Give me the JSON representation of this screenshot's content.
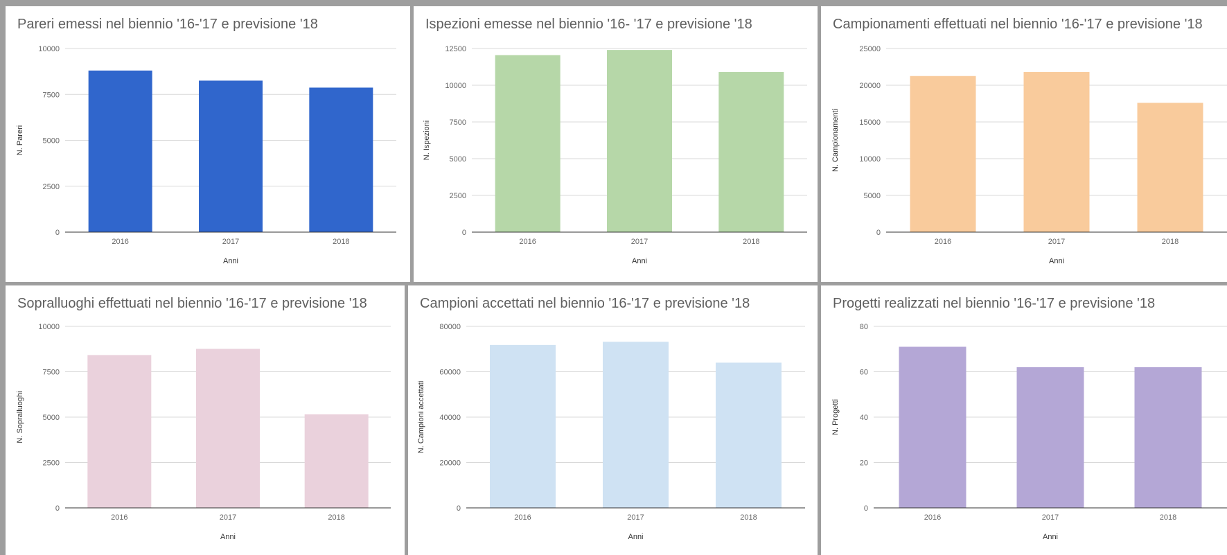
{
  "chart_data": [
    {
      "type": "bar",
      "title": "Pareri emessi nel biennio '16-'17 e previsione '18",
      "xlabel": "Anni",
      "ylabel": "N. Pareri",
      "categories": [
        "2016",
        "2017",
        "2018"
      ],
      "values": [
        8800,
        8250,
        7870
      ],
      "ylim": [
        0,
        10000
      ],
      "yticks": [
        0,
        2500,
        5000,
        7500,
        10000
      ],
      "color": "#3066cc",
      "grid": true,
      "legend": "none"
    },
    {
      "type": "bar",
      "title": "Ispezioni emesse nel biennio '16- '17 e previsione '18",
      "xlabel": "Anni",
      "ylabel": "N. Ispezioni",
      "categories": [
        "2016",
        "2017",
        "2018"
      ],
      "values": [
        12050,
        12400,
        10900
      ],
      "ylim": [
        0,
        12500
      ],
      "yticks": [
        0,
        2500,
        5000,
        7500,
        10000,
        12500
      ],
      "color": "#b6d7a8",
      "grid": true,
      "legend": "none"
    },
    {
      "type": "bar",
      "title": "Campionamenti effettuati nel biennio '16-'17 e previsione '18",
      "xlabel": "Anni",
      "ylabel": "N. Campionamenti",
      "categories": [
        "2016",
        "2017",
        "2018"
      ],
      "values": [
        21250,
        21800,
        17600
      ],
      "ylim": [
        0,
        25000
      ],
      "yticks": [
        0,
        5000,
        10000,
        15000,
        20000,
        25000
      ],
      "color": "#f9cb9c",
      "grid": true,
      "legend": "none"
    },
    {
      "type": "bar",
      "title": "Sopralluoghi effettuati nel biennio '16-'17 e previsione '18",
      "xlabel": "Anni",
      "ylabel": "N. Sopralluoghi",
      "categories": [
        "2016",
        "2017",
        "2018"
      ],
      "values": [
        8420,
        8760,
        5150
      ],
      "ylim": [
        0,
        10000
      ],
      "yticks": [
        0,
        2500,
        5000,
        7500,
        10000
      ],
      "color": "#ead1dc",
      "grid": true,
      "legend": "none"
    },
    {
      "type": "bar",
      "title": "Campioni accettati nel biennio '16-'17 e previsione '18",
      "xlabel": "Anni",
      "ylabel": "N. Campioni accettati",
      "categories": [
        "2016",
        "2017",
        "2018"
      ],
      "values": [
        71800,
        73200,
        64000
      ],
      "ylim": [
        0,
        80000
      ],
      "yticks": [
        0,
        20000,
        40000,
        60000,
        80000
      ],
      "color": "#cfe2f3",
      "grid": true,
      "legend": "none"
    },
    {
      "type": "bar",
      "title": "Progetti realizzati nel biennio '16-'17 e previsione '18",
      "xlabel": "Anni",
      "ylabel": "N. Progetti",
      "categories": [
        "2016",
        "2017",
        "2018"
      ],
      "values": [
        71,
        62,
        62
      ],
      "ylim": [
        0,
        80
      ],
      "yticks": [
        0,
        20,
        40,
        60,
        80
      ],
      "color": "#b4a7d6",
      "grid": true,
      "legend": "none"
    }
  ]
}
